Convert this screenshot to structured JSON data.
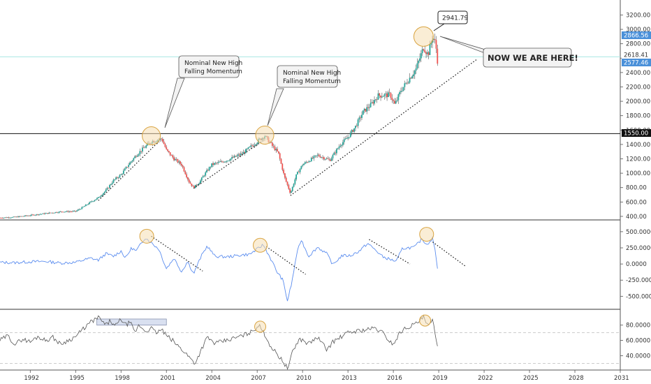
{
  "colors": {
    "up": "#26a69a",
    "down": "#ef5350",
    "wick": "#555555",
    "momentum_line": "#5b8def",
    "rsi_line": "#555555",
    "circle_fill": "#f5deb3",
    "circle_stroke": "#d9a441",
    "price_tag_blue": "#4a90d9",
    "price_tag_black": "#111111",
    "cyan_line": "#a8e6e2",
    "grid_dash": "#bbbbbb",
    "pane_border": "#333333"
  },
  "annotations": {
    "note_2000_line1": "Nominal New High",
    "note_2000_line2": "Falling Momentum",
    "note_2007_line1": "Nominal New High",
    "note_2007_line2": "Falling Momentum",
    "peak_label": "2941.79",
    "here_label": "NOW WE ARE HERE!"
  },
  "price_tags": {
    "last_high": "2866.56",
    "cyan_level": "2618.41",
    "current": "2577.46",
    "support": "1550.00"
  },
  "chart_data": [
    {
      "type": "candlestick",
      "pane": "price",
      "x_range": [
        1990,
        2031
      ],
      "ylim": [
        370,
        3350
      ],
      "y_ticks": [
        "3200.00",
        "3000.00",
        "2800.00",
        "2600.00",
        "2400.00",
        "2200.00",
        "2000.00",
        "1800.00",
        "1600.00",
        "1400.00",
        "1200.00",
        "1000.00",
        "800.00",
        "600.00",
        "400.00"
      ],
      "x_ticks": [
        "1992",
        "1995",
        "1998",
        "2001",
        "2004",
        "2007",
        "2010",
        "2013",
        "2016",
        "2019",
        "2022",
        "2025",
        "2028",
        "2031"
      ],
      "horizontal_levels": [
        1550,
        2618.41
      ],
      "trendlines": [
        [
          1996.5,
          620,
          2000.4,
          1420
        ],
        [
          2002.8,
          790,
          2007.3,
          1440
        ],
        [
          2009.2,
          690,
          2021.5,
          2580
        ]
      ],
      "highlight_circles": [
        [
          2000.0,
          1520
        ],
        [
          2007.5,
          1530
        ],
        [
          2018.0,
          2900
        ]
      ],
      "series_points": [
        [
          1990.0,
          380
        ],
        [
          1991.0,
          390
        ],
        [
          1992.0,
          415
        ],
        [
          1993.0,
          440
        ],
        [
          1994.0,
          465
        ],
        [
          1995.0,
          470
        ],
        [
          1995.5,
          530
        ],
        [
          1996.0,
          600
        ],
        [
          1996.5,
          660
        ],
        [
          1997.0,
          760
        ],
        [
          1997.5,
          900
        ],
        [
          1998.0,
          980
        ],
        [
          1998.5,
          1120
        ],
        [
          1999.0,
          1250
        ],
        [
          1999.5,
          1350
        ],
        [
          2000.0,
          1440
        ],
        [
          2000.7,
          1480
        ],
        [
          2001.0,
          1320
        ],
        [
          2001.5,
          1200
        ],
        [
          2002.0,
          1120
        ],
        [
          2002.5,
          880
        ],
        [
          2002.8,
          800
        ],
        [
          2003.2,
          880
        ],
        [
          2003.5,
          980
        ],
        [
          2004.0,
          1120
        ],
        [
          2005.0,
          1180
        ],
        [
          2006.0,
          1270
        ],
        [
          2007.0,
          1440
        ],
        [
          2007.5,
          1520
        ],
        [
          2008.0,
          1380
        ],
        [
          2008.4,
          1280
        ],
        [
          2008.8,
          950
        ],
        [
          2009.2,
          720
        ],
        [
          2009.6,
          980
        ],
        [
          2010.0,
          1120
        ],
        [
          2011.0,
          1250
        ],
        [
          2011.8,
          1180
        ],
        [
          2012.5,
          1400
        ],
        [
          2013.0,
          1500
        ],
        [
          2013.5,
          1650
        ],
        [
          2014.0,
          1850
        ],
        [
          2014.5,
          1950
        ],
        [
          2015.0,
          2080
        ],
        [
          2015.8,
          2090
        ],
        [
          2016.1,
          1950
        ],
        [
          2016.5,
          2150
        ],
        [
          2017.0,
          2300
        ],
        [
          2017.5,
          2450
        ],
        [
          2018.0,
          2750
        ],
        [
          2018.3,
          2650
        ],
        [
          2018.6,
          2900
        ],
        [
          2018.8,
          2800
        ],
        [
          2018.95,
          2500
        ]
      ]
    },
    {
      "type": "line",
      "pane": "momentum",
      "ylim": [
        -680,
        650
      ],
      "y_ticks": [
        "500.0000",
        "250.0000",
        "0.0000",
        "-250.0000",
        "-500.0000"
      ],
      "trendlines": [
        [
          2000.0,
          430,
          2003.4,
          -110
        ],
        [
          2007.6,
          270,
          2010.2,
          -160
        ],
        [
          2014.4,
          380,
          2017.1,
          0
        ],
        [
          2018.6,
          340,
          2020.8,
          -40
        ]
      ],
      "highlight_circles": [
        [
          1999.7,
          430
        ],
        [
          2007.2,
          290
        ],
        [
          2018.2,
          460
        ]
      ],
      "series_points": [
        [
          1990.0,
          25
        ],
        [
          1991.0,
          20
        ],
        [
          1992.0,
          35
        ],
        [
          1993.0,
          40
        ],
        [
          1994.0,
          15
        ],
        [
          1995.0,
          25
        ],
        [
          1995.5,
          60
        ],
        [
          1996.0,
          90
        ],
        [
          1996.5,
          60
        ],
        [
          1997.0,
          160
        ],
        [
          1997.5,
          120
        ],
        [
          1998.0,
          200
        ],
        [
          1998.3,
          90
        ],
        [
          1998.7,
          250
        ],
        [
          1999.0,
          200
        ],
        [
          1999.6,
          410
        ],
        [
          2000.0,
          330
        ],
        [
          2000.5,
          230
        ],
        [
          2001.0,
          -70
        ],
        [
          2001.5,
          90
        ],
        [
          2002.0,
          -120
        ],
        [
          2002.4,
          40
        ],
        [
          2002.8,
          -150
        ],
        [
          2003.3,
          120
        ],
        [
          2003.7,
          280
        ],
        [
          2004.2,
          120
        ],
        [
          2005.0,
          110
        ],
        [
          2006.0,
          140
        ],
        [
          2006.5,
          150
        ],
        [
          2007.0,
          230
        ],
        [
          2007.4,
          300
        ],
        [
          2007.9,
          80
        ],
        [
          2008.3,
          -120
        ],
        [
          2008.7,
          -250
        ],
        [
          2009.0,
          -570
        ],
        [
          2009.3,
          -280
        ],
        [
          2009.6,
          140
        ],
        [
          2009.9,
          380
        ],
        [
          2010.4,
          120
        ],
        [
          2011.0,
          260
        ],
        [
          2011.6,
          160
        ],
        [
          2012.0,
          -10
        ],
        [
          2012.6,
          130
        ],
        [
          2013.2,
          130
        ],
        [
          2013.8,
          210
        ],
        [
          2014.3,
          320
        ],
        [
          2014.8,
          220
        ],
        [
          2015.3,
          110
        ],
        [
          2015.8,
          70
        ],
        [
          2016.2,
          40
        ],
        [
          2016.6,
          240
        ],
        [
          2017.0,
          250
        ],
        [
          2017.4,
          260
        ],
        [
          2017.9,
          390
        ],
        [
          2018.2,
          300
        ],
        [
          2018.6,
          400
        ],
        [
          2018.8,
          150
        ],
        [
          2018.95,
          -110
        ]
      ]
    },
    {
      "type": "line",
      "pane": "rsi",
      "ylim": [
        23,
        98
      ],
      "y_ticks": [
        "80.0000",
        "60.0000",
        "40.0000"
      ],
      "dashed_levels": [
        70,
        30
      ],
      "highlight_rect": [
        1996.4,
        2001.0,
        80,
        88
      ],
      "highlight_circles": [
        [
          2007.2,
          78
        ],
        [
          2018.1,
          86
        ]
      ],
      "series_points": [
        [
          1990.0,
          60
        ],
        [
          1990.5,
          66
        ],
        [
          1991.0,
          55
        ],
        [
          1991.5,
          62
        ],
        [
          1992.0,
          58
        ],
        [
          1992.5,
          65
        ],
        [
          1993.0,
          60
        ],
        [
          1993.5,
          64
        ],
        [
          1994.0,
          55
        ],
        [
          1994.5,
          60
        ],
        [
          1995.0,
          65
        ],
        [
          1995.5,
          75
        ],
        [
          1996.0,
          84
        ],
        [
          1996.5,
          90
        ],
        [
          1997.0,
          80
        ],
        [
          1997.3,
          86
        ],
        [
          1997.6,
          78
        ],
        [
          1998.0,
          88
        ],
        [
          1998.3,
          80
        ],
        [
          1998.6,
          84
        ],
        [
          1998.9,
          70
        ],
        [
          1999.2,
          80
        ],
        [
          1999.6,
          72
        ],
        [
          2000.0,
          76
        ],
        [
          2000.3,
          70
        ],
        [
          2000.7,
          74
        ],
        [
          2001.0,
          66
        ],
        [
          2001.4,
          60
        ],
        [
          2001.8,
          52
        ],
        [
          2002.2,
          45
        ],
        [
          2002.6,
          36
        ],
        [
          2002.9,
          30
        ],
        [
          2003.3,
          48
        ],
        [
          2003.7,
          64
        ],
        [
          2004.2,
          56
        ],
        [
          2005.0,
          60
        ],
        [
          2006.0,
          66
        ],
        [
          2006.7,
          72
        ],
        [
          2007.1,
          80
        ],
        [
          2007.5,
          68
        ],
        [
          2007.9,
          52
        ],
        [
          2008.4,
          40
        ],
        [
          2008.8,
          30
        ],
        [
          2009.0,
          23
        ],
        [
          2009.4,
          48
        ],
        [
          2009.8,
          62
        ],
        [
          2010.4,
          56
        ],
        [
          2011.0,
          64
        ],
        [
          2011.6,
          48
        ],
        [
          2012.0,
          58
        ],
        [
          2013.0,
          70
        ],
        [
          2013.5,
          72
        ],
        [
          2014.2,
          74
        ],
        [
          2014.8,
          76
        ],
        [
          2015.3,
          70
        ],
        [
          2015.7,
          60
        ],
        [
          2016.0,
          55
        ],
        [
          2016.5,
          72
        ],
        [
          2017.0,
          78
        ],
        [
          2017.5,
          82
        ],
        [
          2018.0,
          90
        ],
        [
          2018.3,
          78
        ],
        [
          2018.6,
          86
        ],
        [
          2018.8,
          64
        ],
        [
          2018.95,
          52
        ]
      ]
    }
  ]
}
